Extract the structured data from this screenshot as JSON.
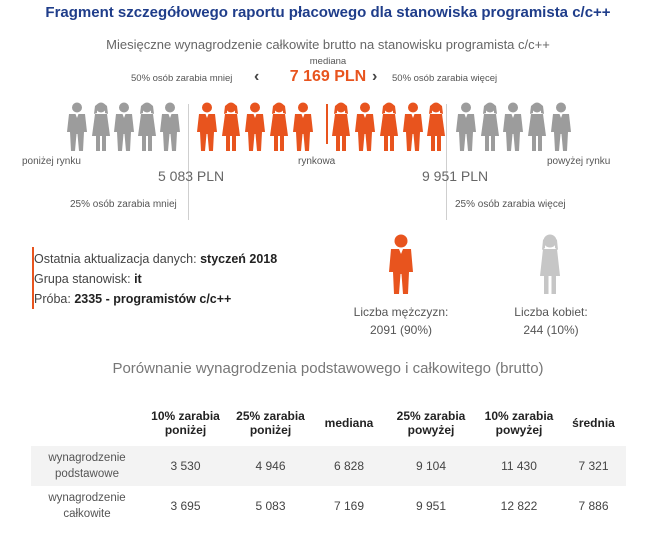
{
  "header": {
    "title": "Fragment szczegółowego raportu płacowego dla stanowiska programista c/c++"
  },
  "chart": {
    "subtitle": "Miesięczne wynagrodzenie całkowite brutto na stanowisku programista c/c++",
    "median_label": "mediana",
    "median_value": "7 169 PLN",
    "left_text": "50% osób zarabia mniej",
    "right_text": "50% osób zarabia więcej",
    "below_market": "poniżej rynku",
    "market": "rynkowa",
    "above_market": "powyżej rynku",
    "low_value": "5 083 PLN",
    "high_value": "9 951 PLN",
    "low_pct_text": "25% osób zarabia mniej",
    "high_pct_text": "25% osób zarabia więcej",
    "colors": {
      "accent": "#e8541e",
      "gray": "#9c9c9c",
      "title": "#1f3d8a"
    }
  },
  "info": {
    "update_label": "Ostatnia aktualizacja danych:",
    "update_value": "styczeń 2018",
    "group_label": "Grupa stanowisk:",
    "group_value": "it",
    "sample_label": "Próba:",
    "sample_value": "2335 - programistów c/c++"
  },
  "gender": {
    "men_label": "Liczba mężczyzn:",
    "men_value": "2091 (90%)",
    "women_label": "Liczba kobiet:",
    "women_value": "244 (10%)"
  },
  "comparison": {
    "title": "Porównanie wynagrodzenia podstawowego i całkowitego (brutto)",
    "headers": [
      "10% zarabia poniżej",
      "25% zarabia poniżej",
      "mediana",
      "25% zarabia powyżej",
      "10% zarabia powyżej",
      "średnia"
    ],
    "rows": [
      {
        "label": "wynagrodzenie podstawowe",
        "values": [
          "3 530",
          "4 946",
          "6 828",
          "9 104",
          "11 430",
          "7 321"
        ]
      },
      {
        "label": "wynagrodzenie całkowite",
        "values": [
          "3 695",
          "5 083",
          "7 169",
          "9 951",
          "12 822",
          "7 886"
        ]
      }
    ]
  }
}
